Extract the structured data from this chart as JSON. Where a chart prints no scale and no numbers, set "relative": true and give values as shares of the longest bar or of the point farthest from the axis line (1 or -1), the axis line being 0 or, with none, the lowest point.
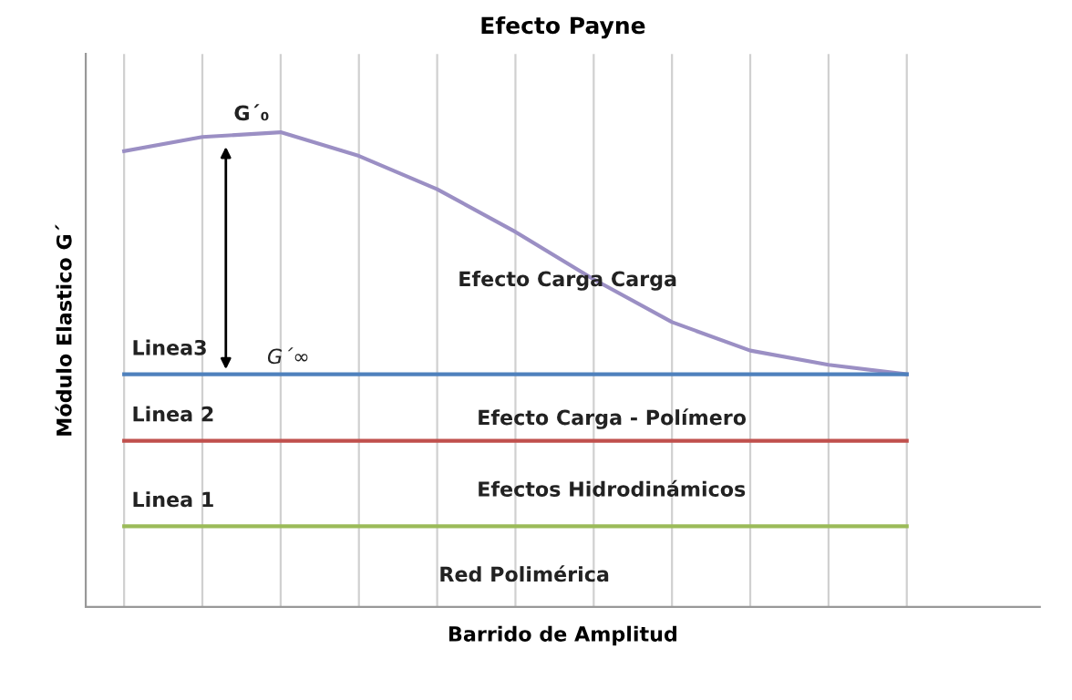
{
  "chart_data": {
    "type": "line",
    "title": "Efecto Payne",
    "xlabel": "Barrido de Amplitud",
    "ylabel": "Módulo Elastico G´",
    "relative": true,
    "grid": "x",
    "legend": false,
    "marker": "none",
    "line_style": "solid",
    "categories": [
      null,
      null,
      null,
      null,
      null,
      null,
      null,
      null,
      null,
      null,
      null
    ],
    "series": [
      {
        "color": "#9b8fc4",
        "values": [
          0.96,
          0.99,
          1.0,
          0.95,
          0.88,
          0.79,
          0.69,
          0.6,
          0.54,
          0.51,
          0.49
        ]
      },
      {
        "name": "Linea3",
        "color": "#4f81bd",
        "values": [
          0.49,
          0.49,
          0.49,
          0.49,
          0.49,
          0.49,
          0.49,
          0.49,
          0.49,
          0.49,
          0.49
        ]
      },
      {
        "name": "Linea 2",
        "color": "#c0504d",
        "values": [
          0.35,
          0.35,
          0.35,
          0.35,
          0.35,
          0.35,
          0.35,
          0.35,
          0.35,
          0.35,
          0.35
        ]
      },
      {
        "name": "Linea 1",
        "color": "#9bbb59",
        "values": [
          0.17,
          0.17,
          0.17,
          0.17,
          0.17,
          0.17,
          0.17,
          0.17,
          0.17,
          0.17,
          0.17
        ]
      }
    ],
    "annotations": [
      "G´₀",
      "G´∞",
      "Efecto Carga Carga",
      "Efecto Carga - Polímero",
      "Efectos Hidrodinámicos",
      "Red Polimérica"
    ]
  }
}
